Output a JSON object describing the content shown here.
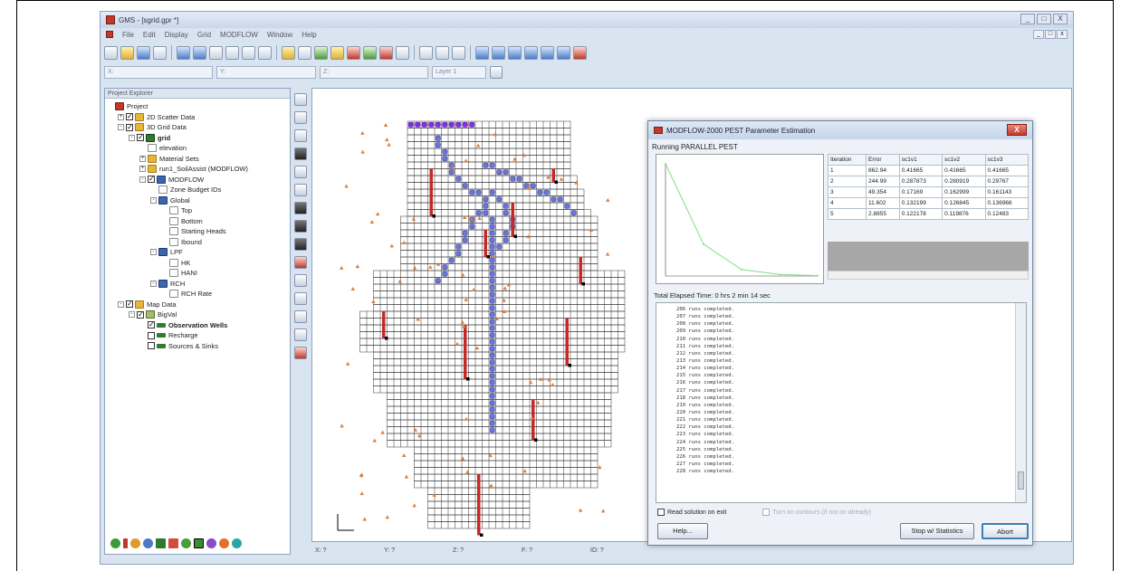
{
  "app": {
    "title": "GMS - [sgrid.gpr *]",
    "window_controls": [
      "_",
      "□",
      "X"
    ],
    "doc_controls": [
      "_",
      "□",
      "x"
    ],
    "menu": [
      "File",
      "Edit",
      "Display",
      "Grid",
      "MODFLOW",
      "Window",
      "Help"
    ],
    "toolbar_fields": [
      "X:",
      "Y:",
      "Z:",
      "Layer 1"
    ]
  },
  "explorer": {
    "title": "Project Explorer",
    "items": [
      {
        "label": "Project",
        "level": 0,
        "expander": "",
        "check": "",
        "icon": "proj",
        "bold": false
      },
      {
        "label": "2D Scatter Data",
        "level": 1,
        "expander": "+",
        "check": "on",
        "icon": "fold",
        "bold": false
      },
      {
        "label": "3D Grid Data",
        "level": 1,
        "expander": "-",
        "check": "on",
        "icon": "fold",
        "bold": false
      },
      {
        "label": "grid",
        "level": 2,
        "expander": "-",
        "check": "on",
        "icon": "grid",
        "bold": true
      },
      {
        "label": "elevation",
        "level": 3,
        "expander": "",
        "check": "",
        "icon": "doc",
        "bold": false
      },
      {
        "label": "Material Sets",
        "level": 3,
        "expander": "+",
        "check": "",
        "icon": "fold",
        "bold": false
      },
      {
        "label": "run1_SoilAssist (MODFLOW)",
        "level": 3,
        "expander": "+",
        "check": "",
        "icon": "fold",
        "bold": false
      },
      {
        "label": "MODFLOW",
        "level": 3,
        "expander": "-",
        "check": "on",
        "icon": "mf",
        "bold": false
      },
      {
        "label": "Zone Budget IDs",
        "level": 4,
        "expander": "",
        "check": "",
        "icon": "doc",
        "bold": false
      },
      {
        "label": "Global",
        "level": 4,
        "expander": "-",
        "check": "",
        "icon": "mf",
        "bold": false
      },
      {
        "label": "Top",
        "level": 5,
        "expander": "",
        "check": "",
        "icon": "doc",
        "bold": false
      },
      {
        "label": "Bottom",
        "level": 5,
        "expander": "",
        "check": "",
        "icon": "doc",
        "bold": false
      },
      {
        "label": "Starting Heads",
        "level": 5,
        "expander": "",
        "check": "",
        "icon": "doc",
        "bold": false
      },
      {
        "label": "Ibound",
        "level": 5,
        "expander": "",
        "check": "",
        "icon": "doc",
        "bold": false
      },
      {
        "label": "LPF",
        "level": 4,
        "expander": "-",
        "check": "",
        "icon": "mf",
        "bold": false
      },
      {
        "label": "HK",
        "level": 5,
        "expander": "",
        "check": "",
        "icon": "doc",
        "bold": false
      },
      {
        "label": "HANI",
        "level": 5,
        "expander": "",
        "check": "",
        "icon": "doc",
        "bold": false
      },
      {
        "label": "RCH",
        "level": 4,
        "expander": "-",
        "check": "",
        "icon": "mf",
        "bold": false
      },
      {
        "label": "RCH Rate",
        "level": 5,
        "expander": "",
        "check": "",
        "icon": "doc",
        "bold": false
      },
      {
        "label": "Map Data",
        "level": 1,
        "expander": "-",
        "check": "on",
        "icon": "fold",
        "bold": false
      },
      {
        "label": "BigVal",
        "level": 2,
        "expander": "-",
        "check": "on",
        "icon": "cov",
        "bold": false
      },
      {
        "label": "Observation Wells",
        "level": 3,
        "expander": "",
        "check": "on",
        "icon": "wells",
        "bold": true
      },
      {
        "label": "Recharge",
        "level": 3,
        "expander": "",
        "check": "off",
        "icon": "wells",
        "bold": false
      },
      {
        "label": "Sources & Sinks",
        "level": 3,
        "expander": "",
        "check": "off",
        "icon": "wells",
        "bold": false
      }
    ]
  },
  "status": {
    "x": "X: ?",
    "y": "Y: ?",
    "z": "Z: ?",
    "f": "F: ?",
    "id": "ID: ?"
  },
  "dialog": {
    "title": "MODFLOW-2000 PEST Parameter Estimation",
    "close": "X",
    "running": "Running PARALLEL PEST",
    "elapsed": "Total Elapsed Time: 0 hrs 2 min 14 sec",
    "table": {
      "headers": [
        "Iteration",
        "Error",
        "sc1v1",
        "sc1v2",
        "sc1v3"
      ],
      "rows": [
        [
          "1",
          "862.94",
          "0.41665",
          "0.41665",
          "0.41665"
        ],
        [
          "2",
          "244.99",
          "0.287873",
          "0.280919",
          "0.29767"
        ],
        [
          "3",
          "49.354",
          "0.17169",
          "0.162999",
          "0.161143"
        ],
        [
          "4",
          "11.602",
          "0.132199",
          "0.126845",
          "0.136966"
        ],
        [
          "5",
          "2.8855",
          "0.122178",
          "0.119876",
          "0.12483"
        ]
      ]
    },
    "chart_data": {
      "type": "line",
      "x": [
        1,
        2,
        3,
        4,
        5
      ],
      "series": [
        {
          "values": [
            862.94,
            244.99,
            49.354,
            11.602,
            2.8855
          ]
        }
      ],
      "xlabel": "",
      "ylabel": "",
      "color": "#7fe07f",
      "grid": false
    },
    "log_lines": [
      "206 runs completed.",
      "207 runs completed.",
      "208 runs completed.",
      "209 runs completed.",
      "210 runs completed.",
      "211 runs completed.",
      "212 runs completed.",
      "213 runs completed.",
      "214 runs completed.",
      "215 runs completed.",
      "216 runs completed.",
      "217 runs completed.",
      "218 runs completed.",
      "219 runs completed.",
      "220 runs completed.",
      "221 runs completed.",
      "222 runs completed.",
      "223 runs completed.",
      "224 runs completed.",
      "225 runs completed.",
      "226 runs completed.",
      "227 runs completed.",
      "228 runs completed."
    ],
    "read_solution_label": "Read solution on exit",
    "turn_on_contours_label": "Turn on contours (if not on already)",
    "help_button": "Help...",
    "stop_button": "Stop w/ Statistics",
    "abort_button": "Abort"
  },
  "colors": {
    "river": "#6b74d8",
    "inflow": "#8a2be2",
    "well": "#c62828",
    "obs_point": "#e07b39",
    "grid_line": "#333333"
  }
}
